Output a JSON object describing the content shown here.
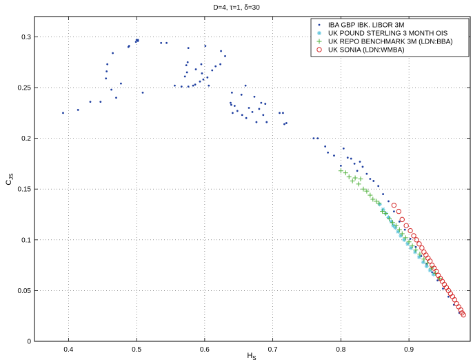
{
  "chart_data": {
    "type": "scatter",
    "title": "D=4, τ=1, δ=30",
    "xlabel": "H_S",
    "ylabel": "C_JS",
    "xlim": [
      0.35,
      0.99
    ],
    "ylim": [
      0,
      0.32
    ],
    "xticks": [
      "0.4",
      "0.5",
      "0.6",
      "0.7",
      "0.8",
      "0.9"
    ],
    "yticks": [
      "0",
      "0.05",
      "0.1",
      "0.15",
      "0.2",
      "0.25",
      "0.3"
    ],
    "grid": true,
    "legend_position": "top-right",
    "series": [
      {
        "name": "IBA GBP IBK. LIBOR 3M",
        "marker": "dot",
        "color": "#1f3fa0",
        "points": [
          [
            0.392,
            0.225
          ],
          [
            0.414,
            0.228
          ],
          [
            0.432,
            0.236
          ],
          [
            0.447,
            0.236
          ],
          [
            0.455,
            0.259
          ],
          [
            0.456,
            0.266
          ],
          [
            0.457,
            0.273
          ],
          [
            0.463,
            0.248
          ],
          [
            0.465,
            0.284
          ],
          [
            0.47,
            0.24
          ],
          [
            0.477,
            0.254
          ],
          [
            0.488,
            0.29
          ],
          [
            0.489,
            0.291
          ],
          [
            0.499,
            0.295
          ],
          [
            0.5,
            0.297
          ],
          [
            0.502,
            0.296
          ],
          [
            0.502,
            0.297
          ],
          [
            0.509,
            0.245
          ],
          [
            0.536,
            0.294
          ],
          [
            0.544,
            0.294
          ],
          [
            0.556,
            0.252
          ],
          [
            0.566,
            0.251
          ],
          [
            0.571,
            0.261
          ],
          [
            0.573,
            0.272
          ],
          [
            0.574,
            0.265
          ],
          [
            0.575,
            0.275
          ],
          [
            0.576,
            0.251
          ],
          [
            0.576,
            0.289
          ],
          [
            0.583,
            0.252
          ],
          [
            0.586,
            0.253
          ],
          [
            0.587,
            0.268
          ],
          [
            0.593,
            0.256
          ],
          [
            0.595,
            0.273
          ],
          [
            0.596,
            0.264
          ],
          [
            0.598,
            0.258
          ],
          [
            0.601,
            0.291
          ],
          [
            0.604,
            0.26
          ],
          [
            0.606,
            0.252
          ],
          [
            0.611,
            0.267
          ],
          [
            0.616,
            0.271
          ],
          [
            0.623,
            0.273
          ],
          [
            0.624,
            0.286
          ],
          [
            0.63,
            0.281
          ],
          [
            0.638,
            0.235
          ],
          [
            0.639,
            0.233
          ],
          [
            0.64,
            0.245
          ],
          [
            0.641,
            0.225
          ],
          [
            0.644,
            0.232
          ],
          [
            0.648,
            0.227
          ],
          [
            0.654,
            0.243
          ],
          [
            0.655,
            0.223
          ],
          [
            0.66,
            0.252
          ],
          [
            0.661,
            0.22
          ],
          [
            0.665,
            0.23
          ],
          [
            0.67,
            0.226
          ],
          [
            0.673,
            0.241
          ],
          [
            0.676,
            0.216
          ],
          [
            0.68,
            0.229
          ],
          [
            0.683,
            0.235
          ],
          [
            0.686,
            0.223
          ],
          [
            0.689,
            0.234
          ],
          [
            0.691,
            0.216
          ],
          [
            0.71,
            0.225
          ],
          [
            0.715,
            0.225
          ],
          [
            0.717,
            0.214
          ],
          [
            0.72,
            0.215
          ],
          [
            0.76,
            0.2
          ],
          [
            0.766,
            0.2
          ],
          [
            0.777,
            0.192
          ],
          [
            0.781,
            0.186
          ],
          [
            0.79,
            0.183
          ],
          [
            0.8,
            0.173
          ],
          [
            0.804,
            0.19
          ],
          [
            0.81,
            0.181
          ],
          [
            0.815,
            0.18
          ],
          [
            0.82,
            0.175
          ],
          [
            0.824,
            0.168
          ],
          [
            0.828,
            0.177
          ],
          [
            0.832,
            0.172
          ],
          [
            0.838,
            0.165
          ],
          [
            0.843,
            0.16
          ],
          [
            0.848,
            0.158
          ],
          [
            0.855,
            0.153
          ],
          [
            0.862,
            0.145
          ],
          [
            0.87,
            0.138
          ],
          [
            0.878,
            0.128
          ],
          [
            0.886,
            0.118
          ],
          [
            0.894,
            0.11
          ],
          [
            0.902,
            0.101
          ],
          [
            0.91,
            0.093
          ],
          [
            0.918,
            0.084
          ],
          [
            0.926,
            0.076
          ],
          [
            0.934,
            0.068
          ],
          [
            0.942,
            0.06
          ],
          [
            0.95,
            0.052
          ],
          [
            0.958,
            0.044
          ],
          [
            0.966,
            0.036
          ],
          [
            0.974,
            0.028
          ]
        ]
      },
      {
        "name": "UK POUND STERLING 3 MONTH OIS",
        "marker": "star",
        "color": "#5fc4dc",
        "points": [
          [
            0.857,
            0.135
          ],
          [
            0.862,
            0.13
          ],
          [
            0.866,
            0.126
          ],
          [
            0.87,
            0.122
          ],
          [
            0.874,
            0.118
          ],
          [
            0.877,
            0.114
          ],
          [
            0.88,
            0.112
          ],
          [
            0.884,
            0.108
          ],
          [
            0.888,
            0.104
          ],
          [
            0.893,
            0.1
          ],
          [
            0.898,
            0.096
          ],
          [
            0.903,
            0.092
          ],
          [
            0.909,
            0.088
          ],
          [
            0.915,
            0.083
          ],
          [
            0.921,
            0.078
          ],
          [
            0.926,
            0.074
          ],
          [
            0.931,
            0.07
          ],
          [
            0.936,
            0.066
          ]
        ]
      },
      {
        "name": "UK REPO BENCHMARK 3M (LDN:BBA)",
        "marker": "plus",
        "color": "#4fb03b",
        "points": [
          [
            0.8,
            0.168
          ],
          [
            0.807,
            0.166
          ],
          [
            0.812,
            0.162
          ],
          [
            0.817,
            0.158
          ],
          [
            0.821,
            0.161
          ],
          [
            0.826,
            0.155
          ],
          [
            0.829,
            0.16
          ],
          [
            0.833,
            0.15
          ],
          [
            0.838,
            0.148
          ],
          [
            0.843,
            0.144
          ],
          [
            0.847,
            0.14
          ],
          [
            0.852,
            0.138
          ],
          [
            0.856,
            0.136
          ],
          [
            0.861,
            0.128
          ],
          [
            0.866,
            0.126
          ],
          [
            0.871,
            0.121
          ],
          [
            0.876,
            0.117
          ],
          [
            0.881,
            0.114
          ],
          [
            0.886,
            0.11
          ],
          [
            0.89,
            0.106
          ],
          [
            0.895,
            0.102
          ],
          [
            0.9,
            0.098
          ],
          [
            0.905,
            0.094
          ],
          [
            0.91,
            0.09
          ],
          [
            0.916,
            0.086
          ],
          [
            0.922,
            0.081
          ],
          [
            0.927,
            0.077
          ],
          [
            0.933,
            0.072
          ],
          [
            0.939,
            0.067
          ],
          [
            0.945,
            0.062
          ]
        ]
      },
      {
        "name": "UK SONIA (LDN:WMBA)",
        "marker": "circle",
        "color": "#d42a2a",
        "points": [
          [
            0.878,
            0.134
          ],
          [
            0.885,
            0.128
          ],
          [
            0.89,
            0.12
          ],
          [
            0.896,
            0.114
          ],
          [
            0.902,
            0.109
          ],
          [
            0.907,
            0.104
          ],
          [
            0.911,
            0.1
          ],
          [
            0.915,
            0.096
          ],
          [
            0.919,
            0.092
          ],
          [
            0.922,
            0.088
          ],
          [
            0.925,
            0.085
          ],
          [
            0.928,
            0.082
          ],
          [
            0.931,
            0.079
          ],
          [
            0.934,
            0.075
          ],
          [
            0.937,
            0.072
          ],
          [
            0.94,
            0.069
          ],
          [
            0.943,
            0.065
          ],
          [
            0.946,
            0.062
          ],
          [
            0.949,
            0.059
          ],
          [
            0.952,
            0.056
          ],
          [
            0.955,
            0.053
          ],
          [
            0.958,
            0.05
          ],
          [
            0.961,
            0.047
          ],
          [
            0.964,
            0.044
          ],
          [
            0.967,
            0.041
          ],
          [
            0.97,
            0.037
          ],
          [
            0.973,
            0.034
          ],
          [
            0.976,
            0.031
          ],
          [
            0.978,
            0.028
          ],
          [
            0.98,
            0.026
          ]
        ]
      }
    ]
  }
}
